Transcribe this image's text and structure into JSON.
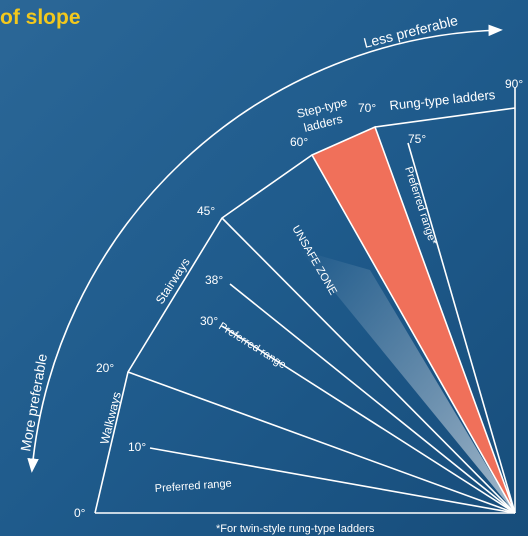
{
  "header": {
    "title": "of slope"
  },
  "arc": {
    "top": "Less preferable",
    "left": "More preferable"
  },
  "angles": [
    "0°",
    "10°",
    "20°",
    "30°",
    "38°",
    "45°",
    "60°",
    "70°",
    "75°",
    "90°"
  ],
  "zones": {
    "walkways": "Walkways",
    "stairways": "Stairways",
    "step_ladders_1": "Step-type",
    "step_ladders_2": "ladders",
    "rung_ladders": "Rung-type ladders",
    "unsafe": "UNSAFE ZONE"
  },
  "ranges": {
    "walkways": "Preferred range",
    "stairways": "Preferred range",
    "rung": "Preferred range*"
  },
  "footnote": "*For twin-style rung-type ladders"
}
